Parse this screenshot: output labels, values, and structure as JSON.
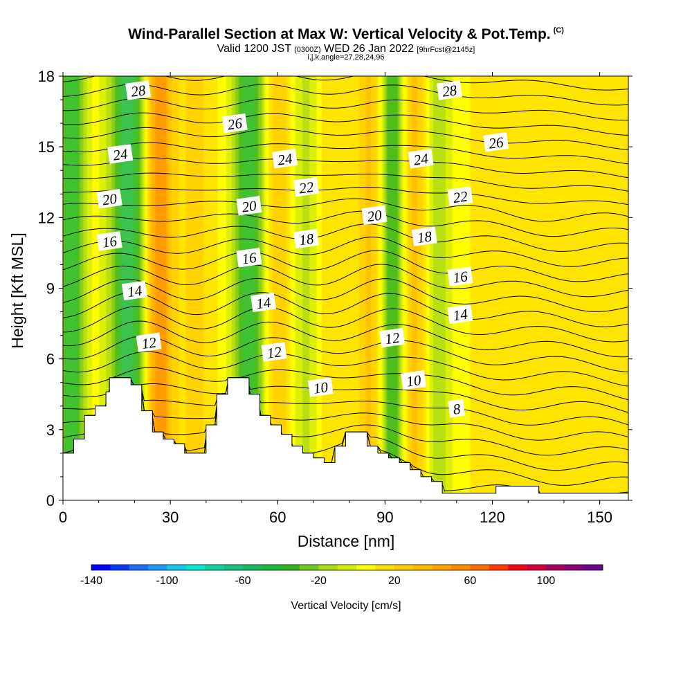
{
  "header": {
    "title": "Wind-Parallel Section at Max W: Vertical Velocity & Pot.Temp.",
    "copyright": "(C)",
    "valid_prefix": "Valid 1200 JST",
    "valid_utc": "(0300Z)",
    "valid_date": "WED 26 Jan 2022",
    "forecast": "[9hrFcst@2145z]",
    "grid_info": "i,j,k,angle=27,28,24,96"
  },
  "chart_data": {
    "type": "heatmap",
    "xlabel": "Distance [nm]",
    "ylabel": "Height [Kft MSL]",
    "xlim": [
      0,
      158
    ],
    "ylim": [
      0,
      18
    ],
    "x_ticks": [
      "0",
      "30",
      "60",
      "90",
      "120",
      "150"
    ],
    "y_ticks": [
      "0",
      "3",
      "6",
      "9",
      "12",
      "15",
      "18"
    ],
    "colorbar": {
      "label": "Vertical Velocity [cm/s]",
      "range": [
        -140,
        120
      ],
      "step": 10,
      "tick_labels": [
        "-140",
        "-100",
        "-60",
        "-20",
        "20",
        "60",
        "100"
      ],
      "colors": [
        "#0000ff",
        "#0a3cf5",
        "#1e6ef5",
        "#1e9bf5",
        "#14c8f0",
        "#0ae6d2",
        "#0fd2a0",
        "#14c382",
        "#19b95f",
        "#1eb93c",
        "#32b41e",
        "#73c81e",
        "#aadc14",
        "#d7ee0a",
        "#ffff00",
        "#ffe100",
        "#ffcd00",
        "#ffb900",
        "#ffa500",
        "#ff8c00",
        "#ff6e00",
        "#ff3c00",
        "#f00a14",
        "#d2003c",
        "#aa005f",
        "#870078",
        "#6e008c"
      ]
    },
    "contours": {
      "variable": "Potential temperature",
      "levels": [
        0,
        1,
        2,
        3,
        4,
        5,
        6,
        7,
        8,
        9,
        10,
        11,
        12,
        13,
        14,
        15,
        16,
        17,
        18,
        19,
        20,
        21,
        22,
        23,
        24,
        25,
        26,
        27,
        28,
        29,
        30,
        31,
        32
      ],
      "labels": [
        {
          "text": "28",
          "x": 21,
          "y": 17.4
        },
        {
          "text": "26",
          "x": 48,
          "y": 16.0
        },
        {
          "text": "24",
          "x": 16,
          "y": 14.7
        },
        {
          "text": "24",
          "x": 62,
          "y": 14.5
        },
        {
          "text": "24",
          "x": 100,
          "y": 14.5
        },
        {
          "text": "28",
          "x": 108,
          "y": 17.4
        },
        {
          "text": "26",
          "x": 121,
          "y": 15.2
        },
        {
          "text": "22",
          "x": 68,
          "y": 13.3
        },
        {
          "text": "22",
          "x": 111,
          "y": 12.9
        },
        {
          "text": "20",
          "x": 13,
          "y": 12.8
        },
        {
          "text": "20",
          "x": 52,
          "y": 12.5
        },
        {
          "text": "20",
          "x": 87,
          "y": 12.1
        },
        {
          "text": "18",
          "x": 68,
          "y": 11.1
        },
        {
          "text": "18",
          "x": 101,
          "y": 11.2
        },
        {
          "text": "16",
          "x": 13,
          "y": 11.0
        },
        {
          "text": "16",
          "x": 52,
          "y": 10.3
        },
        {
          "text": "16",
          "x": 111,
          "y": 9.5
        },
        {
          "text": "14",
          "x": 20,
          "y": 8.9
        },
        {
          "text": "14",
          "x": 56,
          "y": 8.4
        },
        {
          "text": "14",
          "x": 111,
          "y": 7.9
        },
        {
          "text": "12",
          "x": 24,
          "y": 6.7
        },
        {
          "text": "12",
          "x": 59,
          "y": 6.3
        },
        {
          "text": "12",
          "x": 92,
          "y": 6.9
        },
        {
          "text": "10",
          "x": 72,
          "y": 4.8
        },
        {
          "text": "10",
          "x": 98,
          "y": 5.1
        },
        {
          "text": "8",
          "x": 110,
          "y": 3.9
        }
      ]
    },
    "w_bands": [
      {
        "x": 2.5,
        "w": -55,
        "halfwidth": 2.5
      },
      {
        "x": 18,
        "w": -60,
        "halfwidth": 3.5
      },
      {
        "x": 27,
        "w": 55,
        "halfwidth": 2.5
      },
      {
        "x": 37,
        "w": 18,
        "halfwidth": 4
      },
      {
        "x": 52,
        "w": -55,
        "halfwidth": 3
      },
      {
        "x": 60,
        "w": 25,
        "halfwidth": 2.5
      },
      {
        "x": 68,
        "w": -18,
        "halfwidth": 2.5
      },
      {
        "x": 75,
        "w": 15,
        "halfwidth": 3
      },
      {
        "x": 86,
        "w": 28,
        "halfwidth": 3
      },
      {
        "x": 92,
        "w": -50,
        "halfwidth": 2.5
      },
      {
        "x": 98,
        "w": 28,
        "halfwidth": 2.5
      },
      {
        "x": 105,
        "w": -25,
        "halfwidth": 2.5
      },
      {
        "x": 140,
        "w": 12,
        "halfwidth": 20
      }
    ],
    "terrain": [
      [
        0,
        2.0
      ],
      [
        3,
        2.0
      ],
      [
        3,
        2.6
      ],
      [
        6,
        2.6
      ],
      [
        6,
        3.6
      ],
      [
        9,
        3.6
      ],
      [
        9,
        4.0
      ],
      [
        12,
        4.0
      ],
      [
        12,
        4.6
      ],
      [
        13,
        4.6
      ],
      [
        13,
        5.2
      ],
      [
        19,
        5.2
      ],
      [
        19,
        4.9
      ],
      [
        22,
        4.9
      ],
      [
        22,
        3.8
      ],
      [
        25,
        3.8
      ],
      [
        25,
        2.9
      ],
      [
        28,
        2.9
      ],
      [
        28,
        2.6
      ],
      [
        31,
        2.6
      ],
      [
        31,
        2.4
      ],
      [
        34,
        2.4
      ],
      [
        34,
        2.0
      ],
      [
        40,
        2.0
      ],
      [
        40,
        3.2
      ],
      [
        43,
        3.2
      ],
      [
        43,
        4.5
      ],
      [
        46,
        4.5
      ],
      [
        46,
        5.2
      ],
      [
        52,
        5.2
      ],
      [
        52,
        4.5
      ],
      [
        55,
        4.5
      ],
      [
        55,
        3.6
      ],
      [
        58,
        3.6
      ],
      [
        58,
        3.2
      ],
      [
        61,
        3.2
      ],
      [
        61,
        2.8
      ],
      [
        64,
        2.8
      ],
      [
        64,
        2.3
      ],
      [
        67,
        2.3
      ],
      [
        67,
        2.0
      ],
      [
        70,
        2.0
      ],
      [
        70,
        1.8
      ],
      [
        73,
        1.8
      ],
      [
        73,
        1.6
      ],
      [
        76,
        1.6
      ],
      [
        76,
        2.3
      ],
      [
        79,
        2.3
      ],
      [
        79,
        2.9
      ],
      [
        85,
        2.9
      ],
      [
        85,
        2.3
      ],
      [
        88,
        2.3
      ],
      [
        88,
        2.0
      ],
      [
        91,
        2.0
      ],
      [
        91,
        1.8
      ],
      [
        94,
        1.8
      ],
      [
        94,
        1.6
      ],
      [
        97,
        1.6
      ],
      [
        97,
        1.3
      ],
      [
        100,
        1.3
      ],
      [
        100,
        1.0
      ],
      [
        103,
        1.0
      ],
      [
        103,
        0.8
      ],
      [
        106,
        0.8
      ],
      [
        106,
        0.3
      ],
      [
        121,
        0.3
      ],
      [
        121,
        0.6
      ],
      [
        133,
        0.6
      ],
      [
        133,
        0.3
      ],
      [
        158,
        0.3
      ]
    ]
  }
}
